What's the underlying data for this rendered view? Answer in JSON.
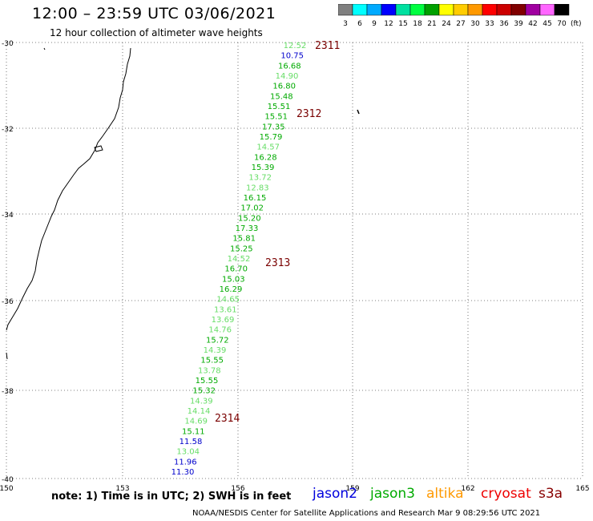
{
  "header": {
    "title": "12:00 – 23:59 UTC 03/06/2021",
    "subtitle": "12 hour collection of altimeter wave heights"
  },
  "colorbar": {
    "unit": "(ft)",
    "labels": [
      "3",
      "6",
      "9",
      "12",
      "15",
      "18",
      "21",
      "24",
      "27",
      "30",
      "33",
      "36",
      "39",
      "42",
      "45",
      "70"
    ],
    "colors": [
      "#808080",
      "#00ffff",
      "#00aaff",
      "#0000ff",
      "#00e0a0",
      "#00ff40",
      "#00a000",
      "#ffff00",
      "#ffcc00",
      "#ff9900",
      "#ff0000",
      "#cc0000",
      "#800000",
      "#a000a0",
      "#ff66ff",
      "#000000"
    ]
  },
  "axes": {
    "lon_labels": [
      "150",
      "153",
      "156",
      "159",
      "162",
      "165"
    ],
    "lat_labels": [
      "-30",
      "-32",
      "-34",
      "-36",
      "-38",
      "-40"
    ]
  },
  "wave_points": [
    {
      "v": "12.52",
      "c": "#66dd66"
    },
    {
      "v": "10.75",
      "c": "#0000cc"
    },
    {
      "v": "16.68",
      "c": "#00aa00"
    },
    {
      "v": "14.90",
      "c": "#66dd66"
    },
    {
      "v": "16.80",
      "c": "#00aa00"
    },
    {
      "v": "15.48",
      "c": "#00aa00"
    },
    {
      "v": "15.51",
      "c": "#00aa00"
    },
    {
      "v": "15.51",
      "c": "#00aa00"
    },
    {
      "v": "17.35",
      "c": "#00aa00"
    },
    {
      "v": "15.79",
      "c": "#00aa00"
    },
    {
      "v": "14.57",
      "c": "#66dd66"
    },
    {
      "v": "16.28",
      "c": "#00aa00"
    },
    {
      "v": "15.39",
      "c": "#00aa00"
    },
    {
      "v": "13.72",
      "c": "#66dd66"
    },
    {
      "v": "12.83",
      "c": "#66dd66"
    },
    {
      "v": "16.15",
      "c": "#00aa00"
    },
    {
      "v": "17.02",
      "c": "#00aa00"
    },
    {
      "v": "15.20",
      "c": "#00aa00"
    },
    {
      "v": "17.33",
      "c": "#00aa00"
    },
    {
      "v": "15.81",
      "c": "#00aa00"
    },
    {
      "v": "15.25",
      "c": "#00aa00"
    },
    {
      "v": "14.52",
      "c": "#66dd66"
    },
    {
      "v": "16.70",
      "c": "#00aa00"
    },
    {
      "v": "15.03",
      "c": "#00aa00"
    },
    {
      "v": "16.29",
      "c": "#00aa00"
    },
    {
      "v": "14.65",
      "c": "#66dd66"
    },
    {
      "v": "13.61",
      "c": "#66dd66"
    },
    {
      "v": "13.69",
      "c": "#66dd66"
    },
    {
      "v": "14.76",
      "c": "#66dd66"
    },
    {
      "v": "15.72",
      "c": "#00aa00"
    },
    {
      "v": "14.39",
      "c": "#66dd66"
    },
    {
      "v": "15.55",
      "c": "#00aa00"
    },
    {
      "v": "13.78",
      "c": "#66dd66"
    },
    {
      "v": "15.55",
      "c": "#00aa00"
    },
    {
      "v": "15.32",
      "c": "#00aa00"
    },
    {
      "v": "14.39",
      "c": "#66dd66"
    },
    {
      "v": "14.14",
      "c": "#66dd66"
    },
    {
      "v": "14.69",
      "c": "#66dd66"
    },
    {
      "v": "15.11",
      "c": "#00aa00"
    },
    {
      "v": "11.58",
      "c": "#0000cc"
    },
    {
      "v": "13.04",
      "c": "#66dd66"
    },
    {
      "v": "11.96",
      "c": "#0000cc"
    },
    {
      "v": "11.30",
      "c": "#0000cc"
    }
  ],
  "time_labels": [
    "2311",
    "2312",
    "2313",
    "2314"
  ],
  "note": "note:  1) Time is in UTC;  2) SWH is in feet",
  "satellites": [
    {
      "name": "jason2",
      "color": "#0000dd"
    },
    {
      "name": "jason3",
      "color": "#00aa00"
    },
    {
      "name": "altika",
      "color": "#ff9900"
    },
    {
      "name": "cryosat",
      "color": "#ee0000"
    },
    {
      "name": "s3a",
      "color": "#880000"
    }
  ],
  "credit": "NOAA/NESDIS Center for Satellite Applications and Research    Mar  9 08:29:56 UTC 2021"
}
